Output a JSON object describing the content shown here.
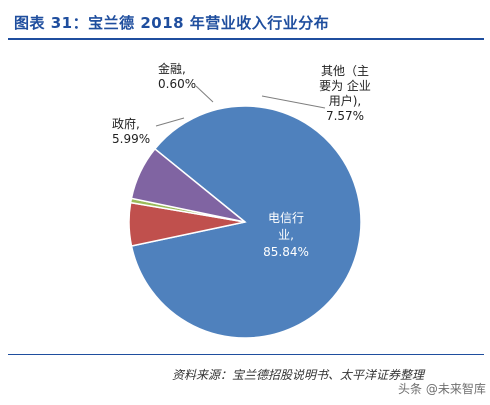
{
  "header": {
    "title": "图表 31：宝兰德 2018 年营业收入行业分布"
  },
  "footer": {
    "source": "资料来源：宝兰德招股说明书、太平洋证券整理",
    "watermark": "头条 @未来智库"
  },
  "chart_data": {
    "type": "pie",
    "title": "图表 31：宝兰德 2018 年营业收入行业分布",
    "slices": [
      {
        "name": "电信行业",
        "value": 85.84,
        "label_lines": [
          "电信行",
          "业,",
          "85.84%"
        ],
        "color": "#4f81bd"
      },
      {
        "name": "政府",
        "value": 5.99,
        "label_lines": [
          "政府,",
          "5.99%"
        ],
        "color": "#c0504d"
      },
      {
        "name": "金融",
        "value": 0.6,
        "label_lines": [
          "金融,",
          "0.60%"
        ],
        "color": "#9bbb59"
      },
      {
        "name": "其他（主要为企业用户）",
        "value": 7.57,
        "label_lines": [
          "其他（主",
          "要为 企业",
          "用户),",
          "7.57%"
        ],
        "color": "#8064a2"
      }
    ],
    "legend": "none"
  }
}
